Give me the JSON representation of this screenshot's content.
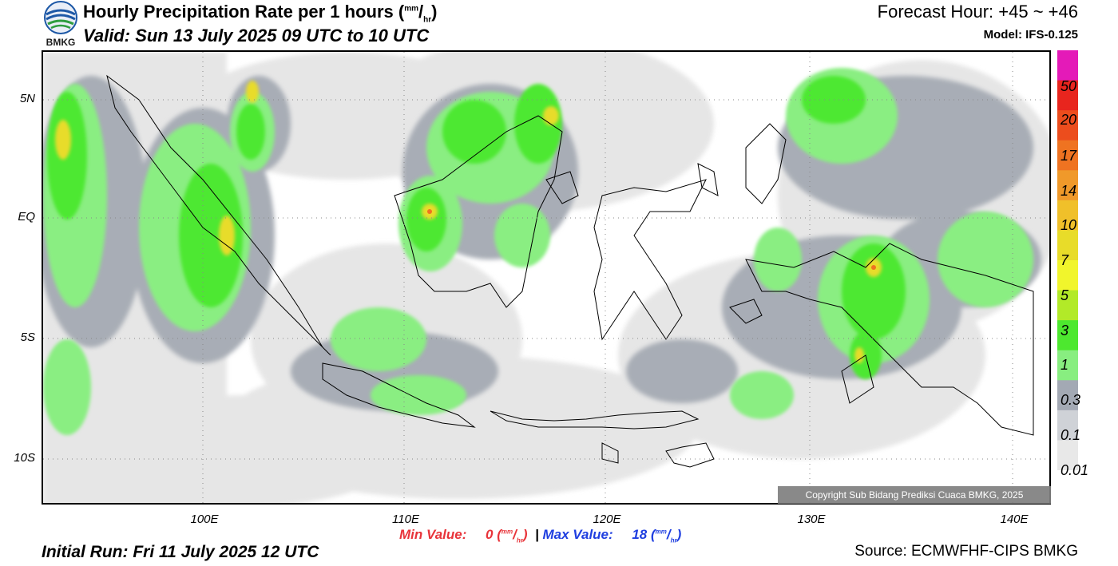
{
  "header": {
    "logo_text": "BMKG",
    "title": "Hourly Precipitation Rate per 1 hours (",
    "title_unit_top": "mm",
    "title_unit_bottom": "hr",
    "title_close": ")",
    "valid": "Valid: Sun 13 July 2025 09 UTC to 10 UTC",
    "forecast_hour": "Forecast Hour: +45 ~ +46",
    "model": "Model: IFS-0.125"
  },
  "map": {
    "lat_labels": [
      "5N",
      "EQ",
      "5S",
      "10S"
    ],
    "lon_labels": [
      "100E",
      "110E",
      "120E",
      "130E",
      "140E"
    ],
    "copyright": "Copyright Sub Bidang Prediksi Cuaca BMKG, 2025"
  },
  "colorbar": {
    "labels": [
      "50",
      "20",
      "17",
      "14",
      "10",
      "7",
      "5",
      "3",
      "1",
      "0.3",
      "0.1",
      "0.01"
    ],
    "colors": [
      "#e41ab8",
      "#e8251e",
      "#ec4d1d",
      "#ef7321",
      "#f0992a",
      "#f0c02a",
      "#e8dc29",
      "#f1f52c",
      "#b2ea28",
      "#4de82f",
      "#88ee80",
      "#a3a9b4",
      "#cfd2d7",
      "#e8e8e8"
    ]
  },
  "footer": {
    "min_label": "Min Value:",
    "min_value": "0",
    "max_label": "Max Value:",
    "max_value": "18",
    "unit_top": "mm",
    "unit_bottom": "hr",
    "separator": "|",
    "initial_run": "Initial Run: Fri 11 July 2025 12 UTC",
    "source": "Source: ECMWFHF-CIPS BMKG"
  }
}
